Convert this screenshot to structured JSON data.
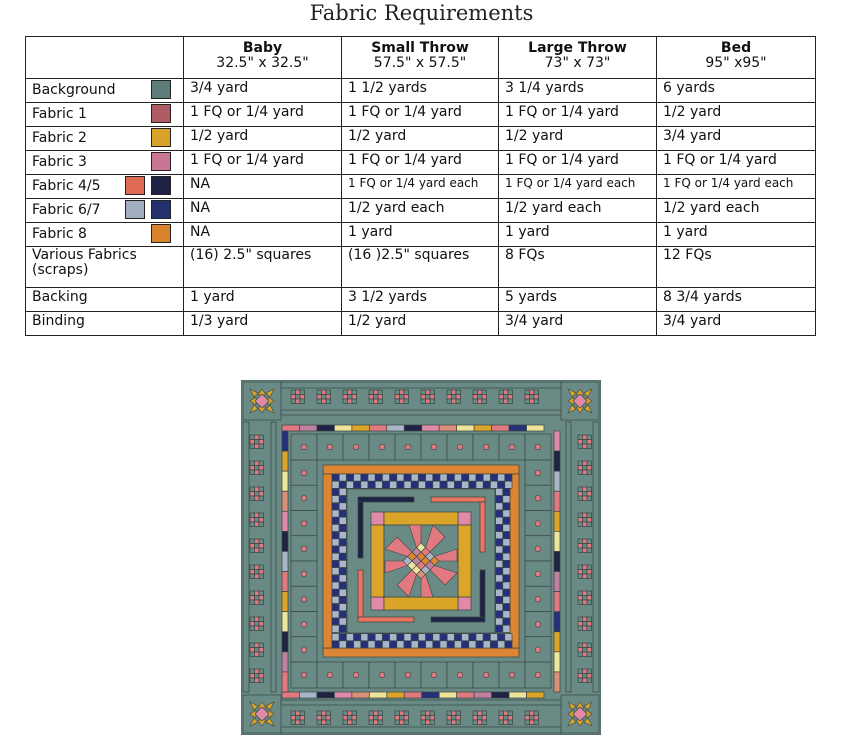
{
  "title": "Fabric Requirements",
  "columns": [
    {
      "name": "Baby",
      "size": "32.5\" x 32.5\""
    },
    {
      "name": "Small Throw",
      "size": "57.5\" x 57.5\""
    },
    {
      "name": "Large Throw",
      "size": "73\" x 73\""
    },
    {
      "name": "Bed",
      "size": "95\" x95\""
    }
  ],
  "rows": [
    {
      "label": "Background",
      "swatches": [
        "#5f7d78"
      ],
      "values": [
        "3/4 yard",
        "1 1/2 yards",
        "3 1/4 yards",
        "6 yards"
      ]
    },
    {
      "label": "Fabric 1",
      "swatches": [
        "#b05a64"
      ],
      "values": [
        "1 FQ or 1/4 yard",
        "1 FQ or 1/4 yard",
        "1 FQ or 1/4 yard",
        "1/2 yard"
      ]
    },
    {
      "label": "Fabric 2",
      "swatches": [
        "#d9a22b"
      ],
      "values": [
        "1/2 yard",
        "1/2 yard",
        "1/2 yard",
        "3/4 yard"
      ]
    },
    {
      "label": "Fabric 3",
      "swatches": [
        "#c87596"
      ],
      "values": [
        "1 FQ or 1/4 yard",
        "1 FQ or 1/4 yard",
        "1 FQ or 1/4 yard",
        "1 FQ or 1/4 yard"
      ]
    },
    {
      "label": "Fabric 4/5",
      "swatches": [
        "#e06b55",
        "#1e2244"
      ],
      "values": [
        "NA",
        "1 FQ or 1/4 yard each",
        "1 FQ or 1/4 yard each",
        "1 FQ or 1/4 yard each"
      ],
      "small": true
    },
    {
      "label": "Fabric 6/7",
      "swatches": [
        "#a3adc0",
        "#24306e"
      ],
      "values": [
        "NA",
        "1/2 yard each",
        "1/2 yard each",
        "1/2 yard each"
      ]
    },
    {
      "label": "Fabric 8",
      "swatches": [
        "#d9832e"
      ],
      "values": [
        "NA",
        "1 yard",
        "1 yard",
        "1 yard"
      ]
    },
    {
      "label": "Various Fabrics (scraps)",
      "swatches": [],
      "values": [
        "(16) 2.5\" squares",
        "(16 )2.5\" squares",
        "8 FQs",
        "12 FQs"
      ],
      "tall": true
    },
    {
      "label": "Backing",
      "swatches": [],
      "values": [
        "1 yard",
        "3 1/2 yards",
        "5 yards",
        "8 3/4 yards"
      ]
    },
    {
      "label": "Binding",
      "swatches": [],
      "values": [
        "1/3 yard",
        "1/2 yard",
        "3/4 yard",
        "3/4 yard"
      ]
    }
  ],
  "quilt_palette": {
    "bg": "#6a8b85",
    "line": "#3a4444",
    "pink": "#e07a80",
    "gold": "#dba52a",
    "rose": "#e08aa8",
    "salmon": "#ea7560",
    "navy": "#1e2244",
    "grey": "#aab6c8",
    "blue": "#26307a",
    "orange": "#dd8532",
    "cream": "#efe59a",
    "mauve": "#c080a0",
    "peach": "#d98f78"
  }
}
